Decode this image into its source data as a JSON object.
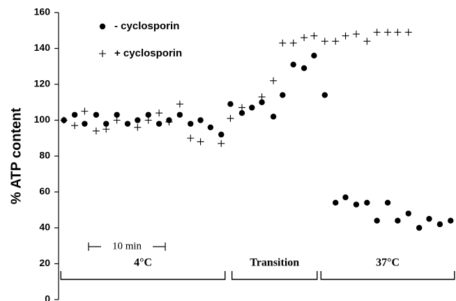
{
  "chart_data": {
    "type": "scatter",
    "ylabel": "% ATP content",
    "ylim": [
      0,
      160
    ],
    "yticks": [
      0,
      20,
      40,
      60,
      80,
      100,
      120,
      140,
      160
    ],
    "xlim": [
      -0.7,
      51.1
    ],
    "series": [
      {
        "name": "- cyclosporin",
        "marker": "dot",
        "color": "#000000",
        "x": [
          0,
          1.4,
          2.7,
          4.2,
          5.5,
          6.9,
          8.3,
          9.6,
          11,
          12.4,
          13.7,
          15.1,
          16.5,
          17.8,
          19.1,
          20.5,
          21.7,
          23.2,
          24.5,
          25.8,
          27.3,
          28.5,
          29.9,
          31.3,
          32.6,
          34,
          35.4,
          36.7,
          38.1,
          39.5,
          40.8,
          42.2,
          43.5,
          44.9,
          46.3,
          47.6,
          49,
          50.4
        ],
        "values": [
          100,
          103,
          98,
          103,
          98,
          103,
          98,
          100,
          103,
          98,
          100,
          103,
          98,
          100,
          96,
          92,
          109,
          104,
          107,
          110,
          102,
          114,
          131,
          129,
          136,
          114,
          54,
          57,
          53,
          54,
          44,
          54,
          44,
          48,
          40,
          45,
          42,
          44
        ]
      },
      {
        "name": "+ cyclosporin",
        "marker": "plus",
        "color": "#000000",
        "x": [
          0,
          1.4,
          2.7,
          4.2,
          5.5,
          6.9,
          9.6,
          11,
          12.4,
          13.7,
          15.1,
          16.5,
          17.8,
          20.5,
          21.7,
          23.2,
          25.8,
          27.3,
          28.5,
          29.9,
          31.3,
          32.6,
          34,
          35.4,
          36.7,
          38.1,
          39.5,
          40.8,
          42.2,
          43.5,
          44.9
        ],
        "values": [
          100,
          97,
          105,
          94,
          95,
          100,
          96,
          100,
          104,
          99,
          109,
          90,
          88,
          87,
          101,
          107,
          113,
          122,
          143,
          143,
          146,
          147,
          144,
          144,
          147,
          148,
          144,
          149,
          149,
          149,
          149
        ]
      }
    ],
    "scale_bar": {
      "label": "10 min",
      "value": 10
    },
    "regions": [
      {
        "label": "4°C",
        "xrange": [
          -0.4,
          21
        ]
      },
      {
        "label": "Transition",
        "xrange": [
          21.9,
          33
        ]
      },
      {
        "label": "37°C",
        "xrange": [
          33.5,
          50.9
        ]
      }
    ]
  }
}
